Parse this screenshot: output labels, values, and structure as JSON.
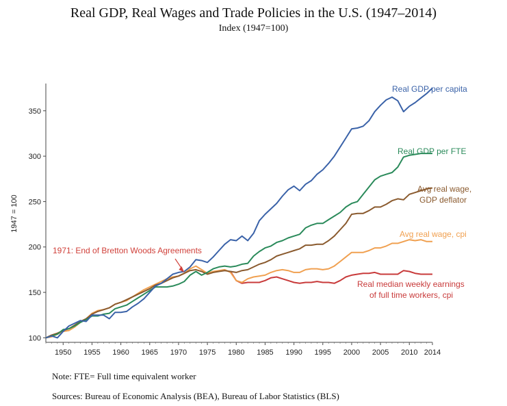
{
  "title": "Real GDP, Real Wages and Trade Policies in the U.S. (1947–2014)",
  "subtitle": "Index (1947=100)",
  "note": "Note: FTE= Full time equivalent worker",
  "sources": "Sources: Bureau of Economic Analysis (BEA), Bureau of Labor Statistics (BLS)",
  "colors": {
    "gdp_per_capita": "#3a62a8",
    "gdp_per_fte": "#2a8a5a",
    "wage_gdp_deflator": "#8a5a2e",
    "wage_cpi": "#f0a050",
    "median_weekly": "#c83a3a",
    "annotation": "#d0403a"
  },
  "chart_data": {
    "type": "line",
    "title": "Real GDP, Real Wages and Trade Policies in the U.S. (1947–2014)",
    "subtitle": "Index (1947=100)",
    "xlabel": "",
    "ylabel": "1947 = 100",
    "xlim": [
      1947,
      2014
    ],
    "ylim": [
      95,
      380
    ],
    "x_ticks": [
      1950,
      1955,
      1960,
      1965,
      1970,
      1975,
      1980,
      1985,
      1990,
      1995,
      2000,
      2005,
      2010,
      2014
    ],
    "y_ticks": [
      100,
      150,
      200,
      250,
      300,
      350
    ],
    "grid": false,
    "annotation": {
      "text": "1971: End of Bretton Woods Agreements",
      "x": 1971,
      "y": 172
    },
    "series": [
      {
        "key": "gdp_per_capita",
        "name": "Real GDP per capita",
        "label_lines": [
          "Real GDP per capita"
        ],
        "x": [
          1947,
          1948,
          1949,
          1950,
          1951,
          1952,
          1953,
          1954,
          1955,
          1956,
          1957,
          1958,
          1959,
          1960,
          1961,
          1962,
          1963,
          1964,
          1965,
          1966,
          1967,
          1968,
          1969,
          1970,
          1971,
          1972,
          1973,
          1974,
          1975,
          1976,
          1977,
          1978,
          1979,
          1980,
          1981,
          1982,
          1983,
          1984,
          1985,
          1986,
          1987,
          1988,
          1989,
          1990,
          1991,
          1992,
          1993,
          1994,
          1995,
          1996,
          1997,
          1998,
          1999,
          2000,
          2001,
          2002,
          2003,
          2004,
          2005,
          2006,
          2007,
          2008,
          2009,
          2010,
          2011,
          2012,
          2013,
          2014
        ],
        "y": [
          100,
          102,
          100,
          107,
          113,
          116,
          119,
          118,
          125,
          125,
          125,
          121,
          128,
          128,
          129,
          134,
          138,
          143,
          150,
          157,
          160,
          165,
          170,
          172,
          173,
          178,
          186,
          185,
          183,
          189,
          196,
          203,
          208,
          207,
          212,
          207,
          215,
          229,
          236,
          242,
          248,
          256,
          263,
          267,
          262,
          269,
          273,
          280,
          285,
          292,
          300,
          310,
          320,
          330,
          331,
          333,
          339,
          349,
          356,
          362,
          365,
          361,
          349,
          355,
          359,
          364,
          369,
          375
        ]
      },
      {
        "key": "gdp_per_fte",
        "name": "Real GDP per FTE",
        "label_lines": [
          "Real GDP per FTE"
        ],
        "x": [
          1947,
          1948,
          1949,
          1950,
          1951,
          1952,
          1953,
          1954,
          1955,
          1956,
          1957,
          1958,
          1959,
          1960,
          1961,
          1962,
          1963,
          1964,
          1965,
          1966,
          1967,
          1968,
          1969,
          1970,
          1971,
          1972,
          1973,
          1974,
          1975,
          1976,
          1977,
          1978,
          1979,
          1980,
          1981,
          1982,
          1983,
          1984,
          1985,
          1986,
          1987,
          1988,
          1989,
          1990,
          1991,
          1992,
          1993,
          1994,
          1995,
          1996,
          1997,
          1998,
          1999,
          2000,
          2001,
          2002,
          2003,
          2004,
          2005,
          2006,
          2007,
          2008,
          2009,
          2010,
          2011,
          2012,
          2013,
          2014
        ],
        "y": [
          100,
          102,
          104,
          109,
          110,
          113,
          117,
          120,
          124,
          124,
          126,
          127,
          132,
          134,
          136,
          140,
          144,
          148,
          152,
          156,
          156,
          156,
          157,
          159,
          162,
          169,
          173,
          169,
          172,
          176,
          178,
          179,
          178,
          179,
          181,
          182,
          190,
          195,
          199,
          201,
          205,
          207,
          210,
          212,
          214,
          221,
          224,
          226,
          226,
          230,
          234,
          238,
          244,
          248,
          250,
          258,
          266,
          274,
          278,
          280,
          282,
          288,
          299,
          301,
          302,
          303,
          303,
          303
        ]
      },
      {
        "key": "wage_gdp_deflator",
        "name": "Avg real wage, GDP deflator",
        "label_lines": [
          "Avg real wage,",
          "GDP deflator"
        ],
        "x": [
          1947,
          1948,
          1949,
          1950,
          1951,
          1952,
          1953,
          1954,
          1955,
          1956,
          1957,
          1958,
          1959,
          1960,
          1961,
          1962,
          1963,
          1964,
          1965,
          1966,
          1967,
          1968,
          1969,
          1970,
          1971,
          1972,
          1973,
          1974,
          1975,
          1976,
          1977,
          1978,
          1979,
          1980,
          1981,
          1982,
          1983,
          1984,
          1985,
          1986,
          1987,
          1988,
          1989,
          1990,
          1991,
          1992,
          1993,
          1994,
          1995,
          1996,
          1997,
          1998,
          1999,
          2000,
          2001,
          2002,
          2003,
          2004,
          2005,
          2006,
          2007,
          2008,
          2009,
          2010,
          2011,
          2012,
          2013,
          2014
        ],
        "y": [
          100,
          103,
          105,
          108,
          110,
          114,
          118,
          121,
          126,
          129,
          131,
          133,
          137,
          139,
          142,
          145,
          148,
          151,
          154,
          158,
          160,
          163,
          166,
          168,
          171,
          174,
          175,
          173,
          170,
          172,
          173,
          174,
          173,
          172,
          174,
          175,
          178,
          181,
          183,
          186,
          190,
          192,
          194,
          196,
          198,
          202,
          202,
          203,
          203,
          207,
          212,
          219,
          226,
          236,
          237,
          237,
          240,
          244,
          244,
          247,
          251,
          253,
          252,
          258,
          260,
          262,
          264,
          265
        ]
      },
      {
        "key": "wage_cpi",
        "name": "Avg real wage, cpi",
        "label_lines": [
          "Avg real wage, cpi"
        ],
        "x": [
          1947,
          1948,
          1949,
          1950,
          1951,
          1952,
          1953,
          1954,
          1955,
          1956,
          1957,
          1958,
          1959,
          1960,
          1961,
          1962,
          1963,
          1964,
          1965,
          1966,
          1967,
          1968,
          1969,
          1970,
          1971,
          1972,
          1973,
          1974,
          1975,
          1976,
          1977,
          1978,
          1979,
          1980,
          1981,
          1982,
          1983,
          1984,
          1985,
          1986,
          1987,
          1988,
          1989,
          1990,
          1991,
          1992,
          1993,
          1994,
          1995,
          1996,
          1997,
          1998,
          1999,
          2000,
          2001,
          2002,
          2003,
          2004,
          2005,
          2006,
          2007,
          2008,
          2009,
          2010,
          2011,
          2012,
          2013,
          2014
        ],
        "y": [
          100,
          101,
          104,
          107,
          108,
          112,
          117,
          121,
          127,
          130,
          131,
          133,
          137,
          139,
          141,
          145,
          149,
          153,
          156,
          159,
          162,
          165,
          167,
          168,
          171,
          176,
          179,
          175,
          171,
          173,
          174,
          175,
          172,
          163,
          161,
          165,
          167,
          168,
          169,
          172,
          174,
          175,
          174,
          172,
          172,
          175,
          176,
          176,
          175,
          176,
          179,
          184,
          189,
          194,
          194,
          194,
          196,
          199,
          199,
          201,
          204,
          204,
          206,
          208,
          207,
          208,
          206,
          206
        ]
      },
      {
        "key": "median_weekly",
        "name": "Real median weekly earnings of full time workers, cpi",
        "label_lines": [
          "Real median weekly earnings",
          "of full time workers, cpi"
        ],
        "x": [
          1979,
          1980,
          1981,
          1982,
          1983,
          1984,
          1985,
          1986,
          1987,
          1988,
          1989,
          1990,
          1991,
          1992,
          1993,
          1994,
          1995,
          1996,
          1997,
          1998,
          1999,
          2000,
          2001,
          2002,
          2003,
          2004,
          2005,
          2006,
          2007,
          2008,
          2009,
          2010,
          2011,
          2012,
          2013,
          2014
        ],
        "y": [
          173,
          163,
          160,
          161,
          161,
          161,
          163,
          166,
          167,
          165,
          163,
          161,
          160,
          161,
          161,
          162,
          161,
          161,
          160,
          163,
          167,
          169,
          170,
          171,
          171,
          172,
          170,
          170,
          170,
          170,
          174,
          173,
          171,
          170,
          170,
          170
        ]
      }
    ]
  }
}
